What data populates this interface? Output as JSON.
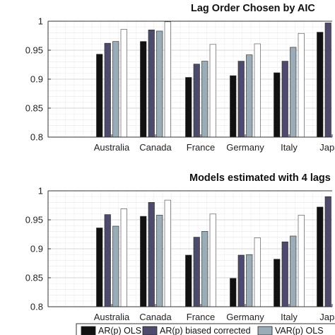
{
  "chart_data": [
    {
      "type": "bar",
      "title": "Lag Order Chosen by AIC",
      "categories": [
        "Australia",
        "Canada",
        "France",
        "Germany",
        "Italy",
        "Japan"
      ],
      "ylim": [
        0.8,
        1.0
      ],
      "yticks": [
        0.8,
        0.85,
        0.9,
        0.95,
        1
      ],
      "ytick_labels": [
        "0.8",
        "0.85",
        "0.9",
        "0.95",
        "1"
      ],
      "grid": true,
      "series": [
        {
          "name": "AR(p) OLS",
          "color": "#111111",
          "values": [
            0.943,
            0.965,
            0.903,
            0.906,
            0.911,
            0.981
          ]
        },
        {
          "name": "AR(p) biased corrected",
          "color": "#4d4a6e",
          "values": [
            0.962,
            0.985,
            0.926,
            0.931,
            0.931,
            0.997
          ]
        },
        {
          "name": "VAR(p) OLS",
          "color": "#9aacb8",
          "values": [
            0.965,
            0.983,
            0.931,
            0.942,
            0.955,
            null
          ]
        },
        {
          "name": "",
          "color": "#ffffff",
          "values": [
            0.986,
            0.999,
            0.96,
            0.961,
            0.979,
            null
          ]
        }
      ]
    },
    {
      "type": "bar",
      "title": "Models estimated with 4 lags",
      "categories": [
        "Australia",
        "Canada",
        "France",
        "Germany",
        "Italy",
        "Japan"
      ],
      "ylim": [
        0.8,
        1.0
      ],
      "yticks": [
        0.8,
        0.85,
        0.9,
        0.95,
        1
      ],
      "ytick_labels": [
        "0.8",
        "0.85",
        "0.9",
        "0.95",
        "1"
      ],
      "grid": true,
      "series": [
        {
          "name": "AR(p) OLS",
          "color": "#111111",
          "values": [
            0.936,
            0.956,
            0.889,
            0.849,
            0.882,
            0.972
          ]
        },
        {
          "name": "AR(p) biased corrected",
          "color": "#4d4a6e",
          "values": [
            0.959,
            0.98,
            0.92,
            0.889,
            0.912,
            0.99
          ]
        },
        {
          "name": "VAR(p) OLS",
          "color": "#9aacb8",
          "values": [
            0.939,
            0.958,
            0.93,
            0.89,
            0.922,
            null
          ]
        },
        {
          "name": "",
          "color": "#ffffff",
          "values": [
            0.969,
            0.984,
            0.96,
            0.919,
            0.958,
            null
          ]
        }
      ]
    }
  ],
  "legend": {
    "placement": "bottom",
    "items": [
      {
        "label": "AR(p) OLS",
        "color": "#111111"
      },
      {
        "label": "AR(p) biased corrected",
        "color": "#4d4a6e"
      },
      {
        "label": "VAR(p) OLS",
        "color": "#9aacb8"
      }
    ]
  }
}
